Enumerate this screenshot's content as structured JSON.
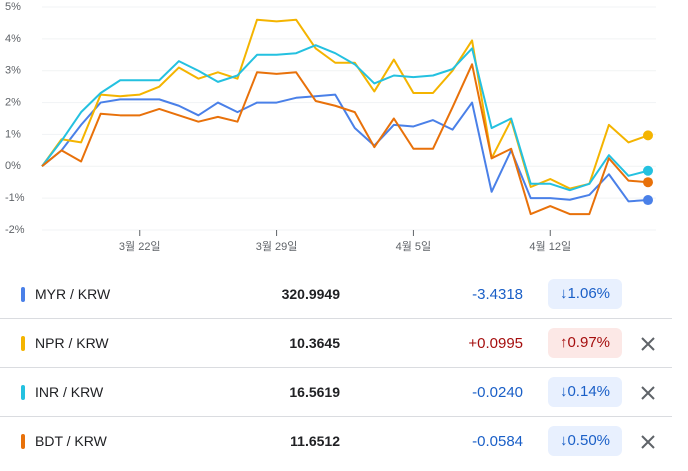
{
  "chart_data": {
    "type": "line",
    "categories": [
      null,
      null,
      null,
      null,
      null,
      "3월 22일",
      null,
      null,
      null,
      null,
      null,
      null,
      "3월 29일",
      null,
      null,
      null,
      null,
      null,
      null,
      "4월 5일",
      null,
      null,
      null,
      null,
      null,
      null,
      "4월 12일",
      null,
      null,
      null,
      null,
      null
    ],
    "ylim": [
      -2,
      5
    ],
    "yticks": [
      {
        "value": 5,
        "label": "5%"
      },
      {
        "value": 4,
        "label": "4%"
      },
      {
        "value": 3,
        "label": "3%"
      },
      {
        "value": 2,
        "label": "2%"
      },
      {
        "value": 1,
        "label": "1%"
      },
      {
        "value": 0,
        "label": "0%"
      },
      {
        "value": -1,
        "label": "-1%"
      },
      {
        "value": -2,
        "label": "-2%"
      }
    ],
    "series": [
      {
        "name": "MYR / KRW",
        "color": "#4a80e8",
        "values": [
          0,
          0.5,
          1.3,
          2.0,
          2.1,
          2.1,
          2.1,
          1.9,
          1.6,
          2.0,
          1.7,
          2.0,
          2.0,
          2.15,
          2.2,
          2.25,
          1.2,
          0.65,
          1.3,
          1.25,
          1.45,
          1.15,
          2.0,
          -0.8,
          0.5,
          -1.0,
          -1.0,
          -1.05,
          -0.9,
          -0.25,
          -1.1,
          -1.06
        ]
      },
      {
        "name": "NPR / KRW",
        "color": "#f4b400",
        "values": [
          0,
          0.85,
          0.75,
          2.25,
          2.2,
          2.25,
          2.5,
          3.1,
          2.75,
          2.95,
          2.75,
          4.6,
          4.55,
          4.6,
          3.7,
          3.25,
          3.25,
          2.35,
          3.35,
          2.3,
          2.3,
          3.0,
          3.95,
          0.25,
          1.45,
          -0.65,
          -0.4,
          -0.7,
          -0.55,
          1.3,
          0.75,
          0.97
        ]
      },
      {
        "name": "INR / KRW",
        "color": "#24c1e0",
        "values": [
          0,
          0.8,
          1.7,
          2.3,
          2.7,
          2.7,
          2.7,
          3.3,
          3.0,
          2.65,
          2.85,
          3.5,
          3.5,
          3.55,
          3.8,
          3.55,
          3.2,
          2.6,
          2.85,
          2.8,
          2.85,
          3.05,
          3.7,
          1.2,
          1.5,
          -0.55,
          -0.55,
          -0.75,
          -0.55,
          0.35,
          -0.3,
          -0.14
        ]
      },
      {
        "name": "BDT / KRW",
        "color": "#e8710a",
        "values": [
          0,
          0.5,
          0.15,
          1.65,
          1.6,
          1.6,
          1.8,
          1.6,
          1.4,
          1.55,
          1.4,
          2.95,
          2.9,
          2.95,
          2.05,
          1.9,
          1.7,
          0.6,
          1.5,
          0.55,
          0.55,
          1.85,
          3.2,
          0.25,
          0.55,
          -1.5,
          -1.25,
          -1.5,
          -1.5,
          0.25,
          -0.45,
          -0.5
        ]
      }
    ]
  },
  "table": {
    "rows": [
      {
        "name": "MYR / KRW",
        "color": "#4a80e8",
        "price": "320.9949",
        "change": "-3.4318",
        "percent": "↓1.06%",
        "removable": false
      },
      {
        "name": "NPR / KRW",
        "color": "#f4b400",
        "price": "10.3645",
        "change": "+0.0995",
        "percent": "↑0.97%",
        "removable": true
      },
      {
        "name": "INR / KRW",
        "color": "#24c1e0",
        "price": "16.5619",
        "change": "-0.0240",
        "percent": "↓0.14%",
        "removable": true
      },
      {
        "name": "BDT / KRW",
        "color": "#e8710a",
        "price": "11.6512",
        "change": "-0.0584",
        "percent": "↓0.50%",
        "removable": true
      }
    ]
  }
}
